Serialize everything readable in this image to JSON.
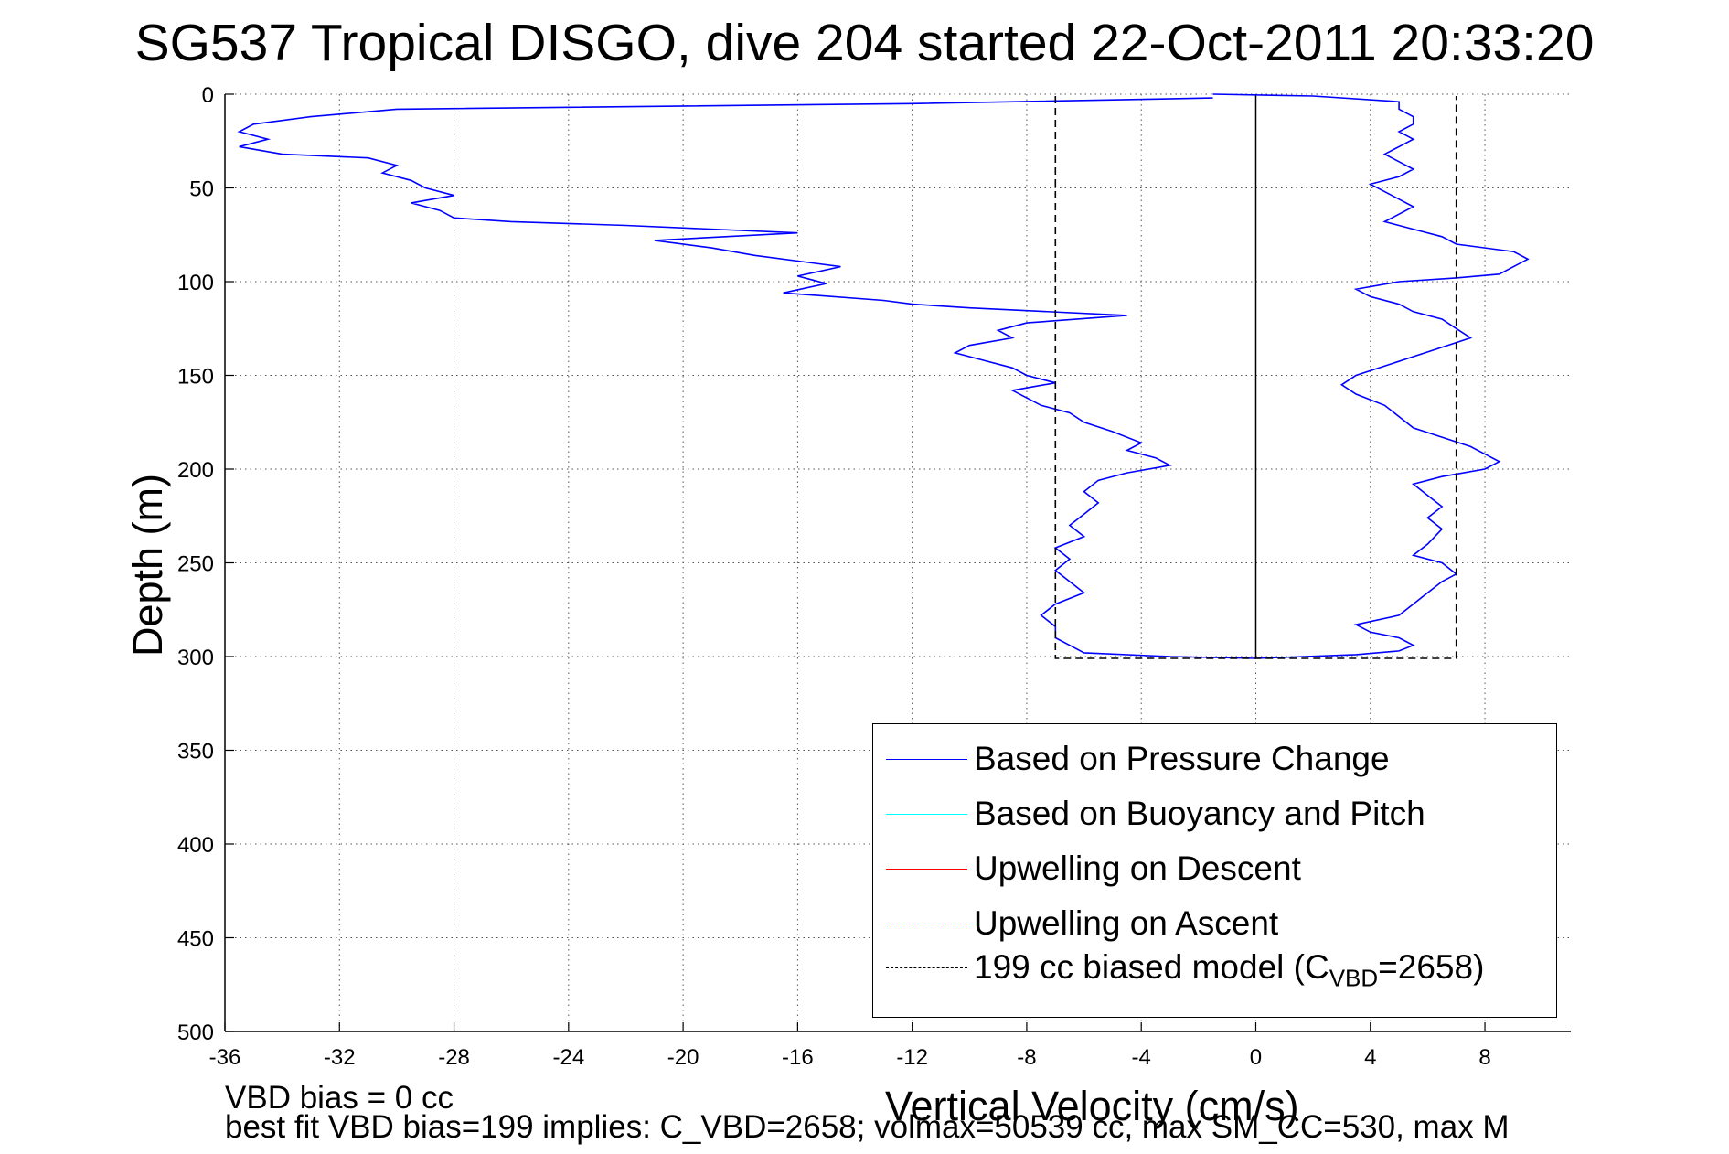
{
  "title": "SG537 Tropical DISGO, dive 204 started 22-Oct-2011 20:33:20",
  "notes": {
    "line1": "VBD bias = 0 cc",
    "line2": "best fit VBD bias=199 implies: C_VBD=2658; volmax=50539 cc, max SM_CC=530, max M"
  },
  "legend": {
    "pressure": "Based on Pressure Change",
    "buoyancy": "Based on Buoyancy and Pitch",
    "descent": "Upwelling on Descent",
    "ascent": "Upwelling on Ascent",
    "model_prefix": "199 cc biased model (C",
    "model_sub": "VBD",
    "model_suffix": "=2658)"
  },
  "colors": {
    "pressure": "#0000ff",
    "buoyancy": "#00ffff",
    "descent": "#ff0000",
    "ascent": "#00ff00",
    "model": "#000000"
  },
  "chart_data": {
    "type": "line",
    "title": "SG537 Tropical DISGO, dive 204 started 22-Oct-2011 20:33:20",
    "xlabel": "Vertical Velocity (cm/s)",
    "ylabel": "Depth (m)",
    "xlim": [
      -36,
      11
    ],
    "ylim": [
      0,
      500
    ],
    "y_reversed": true,
    "xticks": [
      -36,
      -32,
      -28,
      -24,
      -20,
      -16,
      -12,
      -8,
      -4,
      0,
      4,
      8
    ],
    "yticks": [
      0,
      50,
      100,
      150,
      200,
      250,
      300,
      350,
      400,
      450,
      500
    ],
    "grid": true,
    "legend_position": "lower-right",
    "series": [
      {
        "name": "Based on Pressure Change",
        "style": "solid",
        "color": "#0000ff",
        "points": [
          [
            -1.5,
            2
          ],
          [
            -12,
            5
          ],
          [
            -30,
            8
          ],
          [
            -33,
            12
          ],
          [
            -35,
            16
          ],
          [
            -35.5,
            20
          ],
          [
            -34.5,
            24
          ],
          [
            -35.5,
            28
          ],
          [
            -34,
            32
          ],
          [
            -31,
            34
          ],
          [
            -30,
            38
          ],
          [
            -30.5,
            42
          ],
          [
            -29.5,
            46
          ],
          [
            -29,
            50
          ],
          [
            -28,
            54
          ],
          [
            -29.5,
            58
          ],
          [
            -28.5,
            62
          ],
          [
            -28,
            66
          ],
          [
            -26,
            68
          ],
          [
            -22,
            70
          ],
          [
            -16,
            74
          ],
          [
            -21,
            78
          ],
          [
            -19,
            82
          ],
          [
            -17.5,
            86
          ],
          [
            -14.5,
            92
          ],
          [
            -16,
            97
          ],
          [
            -15,
            101
          ],
          [
            -16.5,
            106
          ],
          [
            -13,
            110
          ],
          [
            -12,
            112
          ],
          [
            -10,
            114
          ],
          [
            -4.5,
            118
          ],
          [
            -8,
            122
          ],
          [
            -9,
            126
          ],
          [
            -8.5,
            130
          ],
          [
            -10,
            134
          ],
          [
            -10.5,
            138
          ],
          [
            -9.5,
            142
          ],
          [
            -8.5,
            146
          ],
          [
            -8,
            150
          ],
          [
            -7,
            154
          ],
          [
            -8.5,
            158
          ],
          [
            -8,
            162
          ],
          [
            -7.5,
            166
          ],
          [
            -6.5,
            170
          ],
          [
            -6,
            175
          ],
          [
            -5,
            180
          ],
          [
            -4,
            186
          ],
          [
            -4.5,
            190
          ],
          [
            -3.5,
            194
          ],
          [
            -3,
            198
          ],
          [
            -4.5,
            202
          ],
          [
            -5.5,
            206
          ],
          [
            -6,
            212
          ],
          [
            -5.5,
            218
          ],
          [
            -6,
            224
          ],
          [
            -6.5,
            230
          ],
          [
            -6,
            236
          ],
          [
            -7,
            242
          ],
          [
            -6.5,
            248
          ],
          [
            -7,
            254
          ],
          [
            -6.5,
            260
          ],
          [
            -6,
            266
          ],
          [
            -7,
            272
          ],
          [
            -7.5,
            278
          ],
          [
            -7,
            284
          ],
          [
            -7,
            290
          ],
          [
            -6.5,
            294
          ],
          [
            -6,
            298
          ],
          [
            -3,
            300
          ],
          [
            0,
            301
          ],
          [
            3.5,
            299
          ],
          [
            5,
            297
          ],
          [
            5.5,
            294
          ],
          [
            5,
            290
          ],
          [
            4,
            287
          ],
          [
            3.5,
            283
          ],
          [
            5,
            278
          ],
          [
            5.5,
            272
          ],
          [
            6,
            266
          ],
          [
            6.5,
            260
          ],
          [
            7,
            256
          ],
          [
            6.5,
            250
          ],
          [
            5.5,
            246
          ],
          [
            6,
            240
          ],
          [
            6.5,
            232
          ],
          [
            6,
            226
          ],
          [
            6.5,
            220
          ],
          [
            6,
            214
          ],
          [
            5.5,
            208
          ],
          [
            6.5,
            204
          ],
          [
            8,
            200
          ],
          [
            8.5,
            196
          ],
          [
            8,
            192
          ],
          [
            7.5,
            188
          ],
          [
            6.5,
            183
          ],
          [
            5.5,
            178
          ],
          [
            5,
            172
          ],
          [
            4.5,
            166
          ],
          [
            3.5,
            160
          ],
          [
            3,
            155
          ],
          [
            3.5,
            150
          ],
          [
            4.5,
            145
          ],
          [
            5.5,
            140
          ],
          [
            6.5,
            135
          ],
          [
            7.5,
            130
          ],
          [
            7,
            125
          ],
          [
            6.5,
            120
          ],
          [
            5.5,
            116
          ],
          [
            5,
            112
          ],
          [
            4,
            108
          ],
          [
            3.5,
            104
          ],
          [
            5,
            100
          ],
          [
            7,
            98
          ],
          [
            8.5,
            96
          ],
          [
            9,
            92
          ],
          [
            9.5,
            88
          ],
          [
            9,
            84
          ],
          [
            7,
            80
          ],
          [
            6.5,
            76
          ],
          [
            5.5,
            72
          ],
          [
            4.5,
            68
          ],
          [
            5,
            64
          ],
          [
            5.5,
            60
          ],
          [
            5,
            56
          ],
          [
            4.5,
            52
          ],
          [
            4,
            48
          ],
          [
            5,
            44
          ],
          [
            5.5,
            40
          ],
          [
            5,
            36
          ],
          [
            4.5,
            32
          ],
          [
            5,
            28
          ],
          [
            5.5,
            24
          ],
          [
            5,
            20
          ],
          [
            5.5,
            16
          ],
          [
            5.5,
            12
          ],
          [
            5,
            8
          ],
          [
            5,
            4
          ],
          [
            2,
            1
          ],
          [
            -1.5,
            0
          ]
        ]
      },
      {
        "name": "Based on Buoyancy and Pitch",
        "style": "solid",
        "color": "#00ffff",
        "points": []
      },
      {
        "name": "Upwelling on Descent",
        "style": "solid",
        "color": "#ff0000",
        "points": []
      },
      {
        "name": "Upwelling on Ascent",
        "style": "dashed",
        "color": "#00ff00",
        "points": []
      },
      {
        "name": "199 cc biased model (CVBD=2658)",
        "style": "dashed",
        "color": "#000000",
        "points": [
          [
            -7,
            1
          ],
          [
            -7,
            301
          ],
          [
            0,
            301
          ],
          [
            7,
            301
          ],
          [
            7,
            1
          ]
        ]
      }
    ],
    "reference_line": {
      "x": 0,
      "y_range": [
        0,
        301
      ]
    }
  }
}
